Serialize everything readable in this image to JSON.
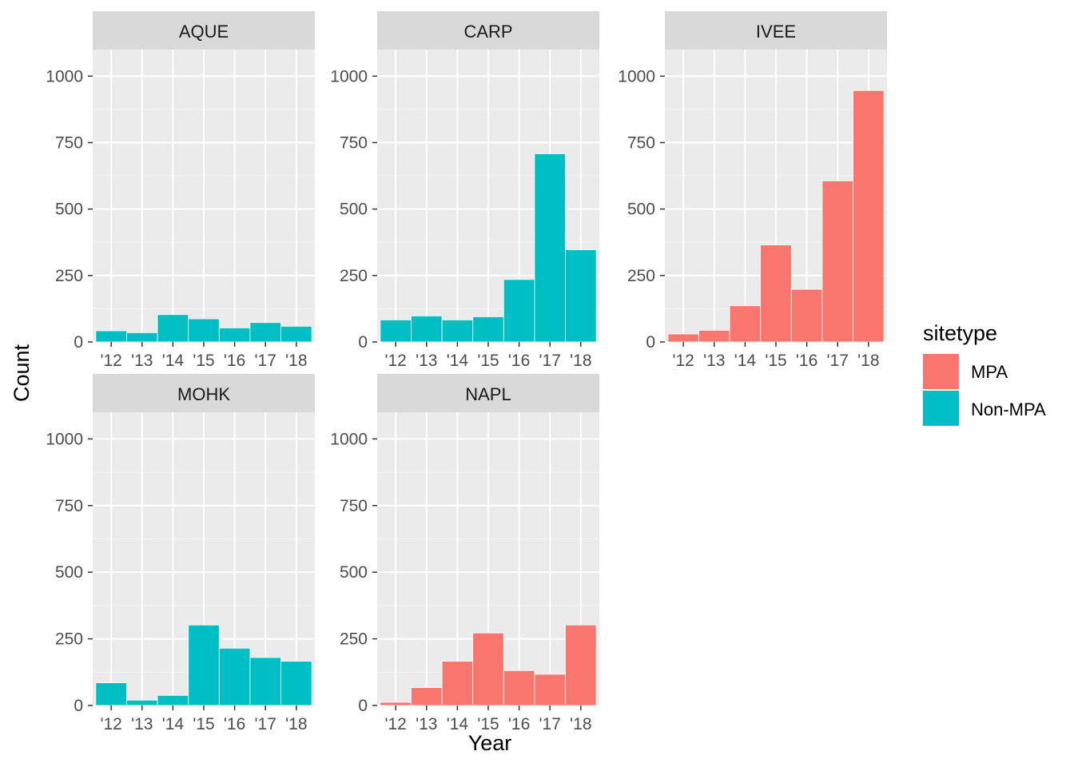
{
  "chart_data": {
    "type": "bar",
    "faceted": true,
    "xlabel": "Year",
    "ylabel": "Count",
    "ylim": [
      0,
      1100
    ],
    "yticks": [
      0,
      250,
      500,
      750,
      1000
    ],
    "categories": [
      "'12",
      "'13",
      "'14",
      "'15",
      "'16",
      "'17",
      "'18"
    ],
    "legend": {
      "title": "sitetype",
      "position": "right",
      "entries": [
        {
          "label": "MPA",
          "color": "#F8766D"
        },
        {
          "label": "Non-MPA",
          "color": "#00BFC4"
        }
      ]
    },
    "panels": [
      {
        "site": "AQUE",
        "sitetype": "Non-MPA",
        "values": [
          42,
          35,
          103,
          87,
          53,
          73,
          59
        ]
      },
      {
        "site": "CARP",
        "sitetype": "Non-MPA",
        "values": [
          83,
          98,
          83,
          95,
          235,
          708,
          347
        ]
      },
      {
        "site": "IVEE",
        "sitetype": "MPA",
        "values": [
          30,
          44,
          136,
          365,
          198,
          606,
          946
        ]
      },
      {
        "site": "MOHK",
        "sitetype": "Non-MPA",
        "values": [
          85,
          20,
          38,
          302,
          215,
          180,
          166
        ]
      },
      {
        "site": "NAPL",
        "sitetype": "MPA",
        "values": [
          12,
          67,
          166,
          272,
          131,
          117,
          302
        ]
      }
    ]
  }
}
